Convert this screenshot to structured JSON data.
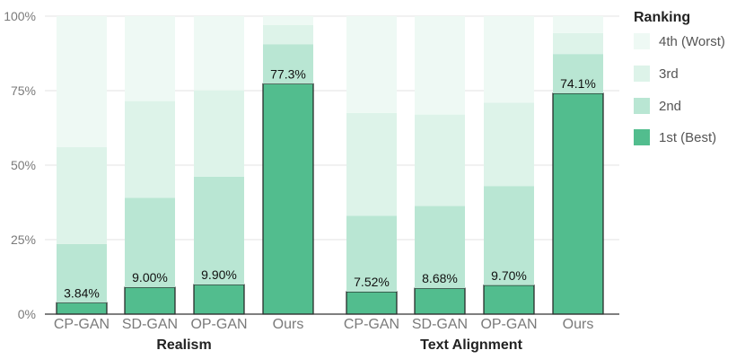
{
  "chart_data": {
    "type": "bar",
    "stacked": true,
    "ylim": [
      0,
      100
    ],
    "yticks": [
      "0%",
      "25%",
      "50%",
      "75%",
      "100%"
    ],
    "grid": true,
    "legend": {
      "title": "Ranking",
      "placement": "right"
    },
    "groups": [
      {
        "name": "Realism",
        "categories": [
          "CP-GAN",
          "SD-GAN",
          "OP-GAN",
          "Ours"
        ]
      },
      {
        "name": "Text Alignment",
        "categories": [
          "CP-GAN",
          "SD-GAN",
          "OP-GAN",
          "Ours"
        ]
      }
    ],
    "series": [
      {
        "name": "1st (Best)",
        "color": "#52bd8e",
        "values": [
          3.84,
          9.0,
          9.9,
          77.3,
          7.52,
          8.68,
          9.7,
          74.1
        ]
      },
      {
        "name": "2nd",
        "color": "#b9e6d3",
        "values": [
          19.7,
          30.0,
          36.2,
          13.3,
          25.5,
          27.6,
          33.3,
          13.2
        ]
      },
      {
        "name": "3rd",
        "color": "#ddf3e9",
        "values": [
          32.5,
          32.5,
          29.0,
          6.4,
          34.5,
          30.7,
          28.0,
          7.0
        ]
      },
      {
        "name": "4th (Worst)",
        "color": "#eef9f4",
        "values": [
          43.96,
          28.5,
          24.9,
          3.0,
          32.48,
          33.02,
          29.0,
          5.7
        ]
      }
    ],
    "data_labels": [
      "3.84%",
      "9.00%",
      "9.90%",
      "77.3%",
      "7.52%",
      "8.68%",
      "9.70%",
      "74.1%"
    ],
    "legend_order": [
      "4th (Worst)",
      "3rd",
      "2nd",
      "1st (Best)"
    ]
  }
}
